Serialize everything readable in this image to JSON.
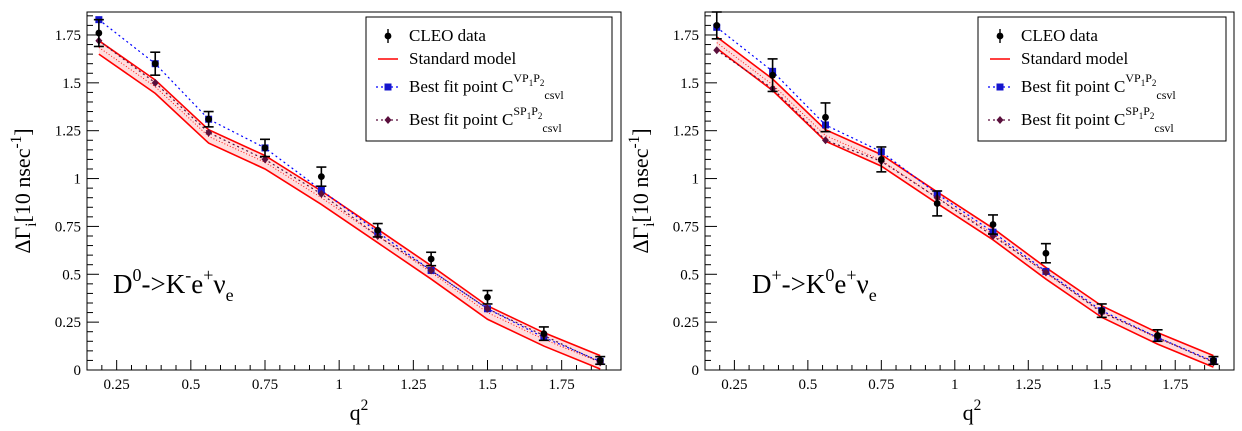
{
  "chart_data": [
    {
      "type": "line",
      "xlabel": "q",
      "xlabel_superscript": "2",
      "ylabel": "ΔΓ",
      "ylabel_subscript": "i",
      "ylabel_units": "[10 nsec",
      "ylabel_units_superscript": "-1",
      "ylabel_units_close": "]",
      "xlim": [
        0.15,
        1.95
      ],
      "ylim": [
        0,
        1.87
      ],
      "xticks": [
        {
          "value": 0.25,
          "label": "0.25"
        },
        {
          "value": 0.5,
          "label": "0.5"
        },
        {
          "value": 0.75,
          "label": "0.75"
        },
        {
          "value": 1.0,
          "label": "1"
        },
        {
          "value": 1.25,
          "label": "1.25"
        },
        {
          "value": 1.5,
          "label": "1.5"
        },
        {
          "value": 1.75,
          "label": "1.75"
        }
      ],
      "yticks": [
        {
          "value": 0,
          "label": "0"
        },
        {
          "value": 0.25,
          "label": "0.25"
        },
        {
          "value": 0.5,
          "label": "0.5"
        },
        {
          "value": 0.75,
          "label": "0.75"
        },
        {
          "value": 1.0,
          "label": "1"
        },
        {
          "value": 1.25,
          "label": "1.25"
        },
        {
          "value": 1.5,
          "label": "1.5"
        },
        {
          "value": 1.75,
          "label": "1.75"
        }
      ],
      "annotation": {
        "p1": "D",
        "s1": "0",
        "p2": "->K",
        "s2": "-",
        "p3": "e",
        "s3": "+",
        "p4": "ν",
        "sub4": "e"
      },
      "legend_position": "top-right",
      "legend": [
        {
          "kind": "data",
          "text": "CLEO data"
        },
        {
          "kind": "band",
          "text": "Standard model"
        },
        {
          "kind": "vp",
          "text": "Best fit point C",
          "sup": "VP",
          "supsub": "1",
          "sup2": "P",
          "supsub2": "2",
          "sub": "csvl"
        },
        {
          "kind": "sp",
          "text": "Best fit point C",
          "sup": "SP",
          "supsub": "1",
          "sup2": "P",
          "supsub2": "2",
          "sub": "csvl"
        }
      ],
      "colors": {
        "data": "#000000",
        "sm": "#ff0000",
        "vp": "#0000ff",
        "vp_marker": "#1515cc",
        "sp": "#5a0f3c"
      },
      "x": [
        0.19,
        0.38,
        0.56,
        0.75,
        0.94,
        1.13,
        1.31,
        1.5,
        1.69,
        1.88
      ],
      "series": [
        {
          "name": "CLEO data",
          "values": [
            1.76,
            1.6,
            1.31,
            1.16,
            1.01,
            0.73,
            0.58,
            0.38,
            0.19,
            0.05
          ],
          "errors": [
            0.07,
            0.06,
            0.04,
            0.045,
            0.05,
            0.035,
            0.035,
            0.035,
            0.035,
            0.02
          ]
        },
        {
          "name": "Standard model",
          "values": [
            1.685,
            1.48,
            1.22,
            1.085,
            0.9,
            0.7,
            0.51,
            0.3,
            0.16,
            0.04
          ],
          "band": 0.035
        },
        {
          "name": "Best fit point C^{VP1P2}_csvl",
          "values": [
            1.83,
            1.6,
            1.31,
            1.16,
            0.94,
            0.72,
            0.52,
            0.32,
            0.17,
            0.045
          ]
        },
        {
          "name": "Best fit point C^{SP1P2}_csvl",
          "values": [
            1.72,
            1.5,
            1.24,
            1.1,
            0.92,
            0.7,
            0.52,
            0.32,
            0.18,
            0.04
          ]
        }
      ]
    },
    {
      "type": "line",
      "xlabel": "q",
      "xlabel_superscript": "2",
      "ylabel": "ΔΓ",
      "ylabel_subscript": "i",
      "ylabel_units": "[10 nsec",
      "ylabel_units_superscript": "-1",
      "ylabel_units_close": "]",
      "xlim": [
        0.15,
        1.95
      ],
      "ylim": [
        0,
        1.87
      ],
      "xticks": [
        {
          "value": 0.25,
          "label": "0.25"
        },
        {
          "value": 0.5,
          "label": "0.5"
        },
        {
          "value": 0.75,
          "label": "0.75"
        },
        {
          "value": 1.0,
          "label": "1"
        },
        {
          "value": 1.25,
          "label": "1.25"
        },
        {
          "value": 1.5,
          "label": "1.5"
        },
        {
          "value": 1.75,
          "label": "1.75"
        }
      ],
      "yticks": [
        {
          "value": 0,
          "label": "0"
        },
        {
          "value": 0.25,
          "label": "0.25"
        },
        {
          "value": 0.5,
          "label": "0.5"
        },
        {
          "value": 0.75,
          "label": "0.75"
        },
        {
          "value": 1.0,
          "label": "1"
        },
        {
          "value": 1.25,
          "label": "1.25"
        },
        {
          "value": 1.5,
          "label": "1.5"
        },
        {
          "value": 1.75,
          "label": "1.75"
        }
      ],
      "annotation": {
        "p1": "D",
        "s1": "+",
        "p2": "->K",
        "s2": "0",
        "p3": "e",
        "s3": "+",
        "p4": "ν",
        "sub4": "e"
      },
      "legend_position": "top-right",
      "legend": [
        {
          "kind": "data",
          "text": "CLEO data"
        },
        {
          "kind": "band",
          "text": "Standard model"
        },
        {
          "kind": "vp",
          "text": "Best fit point C",
          "sup": "VP",
          "supsub": "1",
          "sup2": "P",
          "supsub2": "2",
          "sub": "csvl"
        },
        {
          "kind": "sp",
          "text": "Best fit point C",
          "sup": "SP",
          "supsub": "1",
          "sup2": "P",
          "supsub2": "2",
          "sub": "csvl"
        }
      ],
      "colors": {
        "data": "#000000",
        "sm": "#ff0000",
        "vp": "#0000ff",
        "vp_marker": "#1515cc",
        "sp": "#5a0f3c"
      },
      "x": [
        0.19,
        0.38,
        0.56,
        0.75,
        0.94,
        1.13,
        1.31,
        1.5,
        1.69,
        1.88
      ],
      "series": [
        {
          "name": "CLEO data",
          "values": [
            1.8,
            1.54,
            1.32,
            1.1,
            0.87,
            0.76,
            0.61,
            0.31,
            0.18,
            0.05
          ],
          "errors": [
            0.07,
            0.085,
            0.075,
            0.065,
            0.065,
            0.05,
            0.05,
            0.035,
            0.03,
            0.02
          ]
        },
        {
          "name": "Standard model",
          "values": [
            1.71,
            1.49,
            1.225,
            1.095,
            0.9,
            0.71,
            0.505,
            0.305,
            0.165,
            0.045
          ],
          "band": 0.03
        },
        {
          "name": "Best fit point C^{VP1P2}_csvl",
          "values": [
            1.79,
            1.56,
            1.28,
            1.14,
            0.92,
            0.72,
            0.515,
            0.31,
            0.17,
            0.045
          ]
        },
        {
          "name": "Best fit point C^{SP1P2}_csvl",
          "values": [
            1.67,
            1.47,
            1.2,
            1.09,
            0.9,
            0.7,
            0.51,
            0.3,
            0.17,
            0.04
          ]
        }
      ]
    }
  ]
}
